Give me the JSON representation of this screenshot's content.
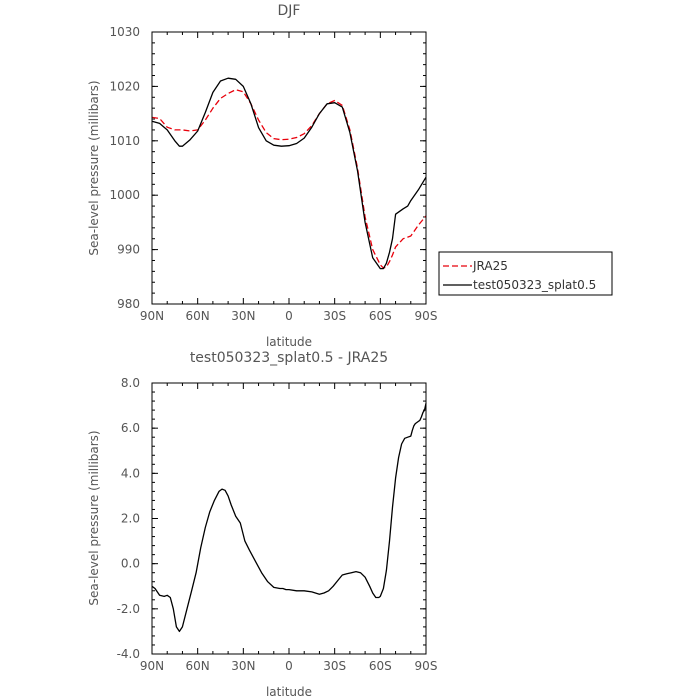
{
  "chart_data": [
    {
      "type": "line",
      "title": "DJF",
      "xlabel": "latitude",
      "ylabel": "Sea-level pressure (millibars)",
      "xlim": [
        -90,
        90
      ],
      "ylim": [
        980,
        1030
      ],
      "xticks": [
        -90,
        -60,
        -30,
        0,
        30,
        60,
        90
      ],
      "xtick_labels": [
        "90N",
        "60N",
        "30N",
        "0",
        "30S",
        "60S",
        "90S"
      ],
      "yticks": [
        980,
        990,
        1000,
        1010,
        1020,
        1030
      ],
      "ytick_labels": [
        "980",
        "990",
        "1000",
        "1010",
        "1020",
        "1030"
      ],
      "legend_position": "right",
      "series": [
        {
          "name": "JRA25",
          "color": "#e8000b",
          "dash": "dashed",
          "x": [
            -90,
            -85,
            -80,
            -75,
            -70,
            -65,
            -60,
            -55,
            -50,
            -45,
            -40,
            -35,
            -30,
            -25,
            -20,
            -15,
            -10,
            -5,
            0,
            5,
            10,
            15,
            20,
            25,
            30,
            35,
            40,
            45,
            50,
            55,
            60,
            62,
            64,
            66,
            68,
            70,
            75,
            80,
            85,
            90
          ],
          "y": [
            1014.3,
            1014.1,
            1012.5,
            1012.0,
            1012.0,
            1011.8,
            1012.0,
            1013.8,
            1016.0,
            1017.8,
            1018.7,
            1019.4,
            1019.0,
            1016.8,
            1013.8,
            1011.5,
            1010.4,
            1010.2,
            1010.3,
            1010.6,
            1011.3,
            1012.8,
            1015.0,
            1016.8,
            1017.4,
            1016.5,
            1012.0,
            1005.0,
            996.0,
            990.0,
            987.2,
            986.6,
            986.8,
            987.8,
            989.0,
            990.5,
            992.0,
            992.5,
            994.5,
            996.2
          ]
        },
        {
          "name": "test050323_splat0.5",
          "color": "#000000",
          "dash": "solid",
          "x": [
            -90,
            -85,
            -80,
            -75,
            -72,
            -70,
            -65,
            -60,
            -55,
            -50,
            -45,
            -40,
            -35,
            -30,
            -25,
            -20,
            -15,
            -10,
            -5,
            0,
            5,
            10,
            15,
            20,
            25,
            30,
            35,
            40,
            45,
            50,
            55,
            60,
            62,
            64,
            66,
            68,
            70,
            75,
            78,
            80,
            85,
            90
          ],
          "y": [
            1013.6,
            1013.2,
            1012.0,
            1010.0,
            1009.0,
            1009.0,
            1010.2,
            1011.8,
            1015.2,
            1018.9,
            1021.0,
            1021.5,
            1021.3,
            1020.0,
            1016.8,
            1012.4,
            1010.0,
            1009.2,
            1009.0,
            1009.1,
            1009.5,
            1010.5,
            1012.5,
            1015.0,
            1016.8,
            1017.0,
            1016.2,
            1011.5,
            1004.5,
            995.0,
            988.5,
            986.5,
            986.5,
            987.5,
            989.5,
            992.0,
            996.5,
            997.5,
            998.0,
            999.0,
            1001.0,
            1003.3
          ]
        }
      ]
    },
    {
      "type": "line",
      "title": "test050323_splat0.5 - JRA25",
      "xlabel": "latitude",
      "ylabel": "Sea-level pressure (millibars)",
      "xlim": [
        -90,
        90
      ],
      "ylim": [
        -4.0,
        8.0
      ],
      "xticks": [
        -90,
        -60,
        -30,
        0,
        30,
        60,
        90
      ],
      "xtick_labels": [
        "90N",
        "60N",
        "30N",
        "0",
        "30S",
        "60S",
        "90S"
      ],
      "yticks": [
        -4,
        -2,
        0,
        2,
        4,
        6,
        8
      ],
      "ytick_labels": [
        "-4.0",
        "-2.0",
        "0.0",
        "2.0",
        "4.0",
        "6.0",
        "8.0"
      ],
      "series": [
        {
          "color": "#000000",
          "dash": "solid",
          "x": [
            -90,
            -88,
            -85,
            -82,
            -80,
            -78,
            -76,
            -74,
            -72,
            -70,
            -67,
            -64,
            -61,
            -58,
            -55,
            -52,
            -49,
            -46,
            -44,
            -42,
            -40,
            -38,
            -35,
            -32,
            -29,
            -26,
            -22,
            -18,
            -14,
            -10,
            -6,
            -4,
            -2,
            0,
            5,
            10,
            15,
            20,
            23,
            26,
            29,
            32,
            35,
            38,
            41,
            44,
            47,
            50,
            53,
            55,
            57,
            59,
            60,
            62,
            64,
            66,
            68,
            70,
            72,
            74,
            76,
            78,
            80,
            81,
            82,
            83,
            85,
            86,
            87,
            88,
            89,
            90
          ],
          "y": [
            -1.0,
            -1.1,
            -1.4,
            -1.45,
            -1.4,
            -1.5,
            -2.0,
            -2.8,
            -3.0,
            -2.8,
            -2.0,
            -1.2,
            -0.4,
            0.7,
            1.6,
            2.3,
            2.8,
            3.2,
            3.3,
            3.25,
            3.0,
            2.6,
            2.1,
            1.8,
            1.0,
            0.6,
            0.1,
            -0.4,
            -0.8,
            -1.05,
            -1.1,
            -1.1,
            -1.15,
            -1.15,
            -1.2,
            -1.2,
            -1.25,
            -1.35,
            -1.3,
            -1.2,
            -1.0,
            -0.75,
            -0.5,
            -0.45,
            -0.4,
            -0.35,
            -0.4,
            -0.6,
            -1.0,
            -1.3,
            -1.5,
            -1.5,
            -1.45,
            -1.1,
            -0.3,
            1.0,
            2.5,
            3.8,
            4.7,
            5.3,
            5.55,
            5.6,
            5.65,
            5.9,
            6.1,
            6.2,
            6.3,
            6.35,
            6.5,
            6.7,
            6.8,
            7.1
          ]
        }
      ]
    }
  ]
}
